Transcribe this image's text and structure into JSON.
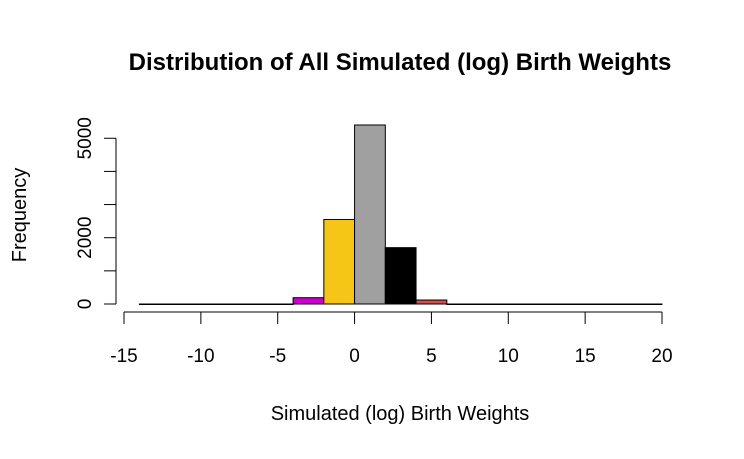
{
  "chart_data": {
    "type": "bar",
    "title": "Distribution of All Simulated (log) Birth Weights",
    "xlabel": "Simulated (log) Birth Weights",
    "ylabel": "Frequency",
    "xlim": [
      -15,
      20
    ],
    "ylim": [
      0,
      5200
    ],
    "x_ticks": [
      "-15",
      "-10",
      "-5",
      "0",
      "5",
      "10",
      "15",
      "20"
    ],
    "y_ticks": [
      "0",
      "2000",
      "5000"
    ],
    "bins": [
      {
        "start": -14,
        "end": -12,
        "value": 0,
        "color": "#ffffff"
      },
      {
        "start": -12,
        "end": -10,
        "value": 0,
        "color": "#ffffff"
      },
      {
        "start": -10,
        "end": -8,
        "value": 0,
        "color": "#ffffff"
      },
      {
        "start": -8,
        "end": -6,
        "value": 0,
        "color": "#ffffff"
      },
      {
        "start": -6,
        "end": -4,
        "value": 0,
        "color": "#ffffff"
      },
      {
        "start": -4,
        "end": -2,
        "value": 190,
        "color": "#cc00cc"
      },
      {
        "start": -2,
        "end": 0,
        "value": 2550,
        "color": "#f5c518"
      },
      {
        "start": 0,
        "end": 2,
        "value": 5400,
        "color": "#a0a0a0"
      },
      {
        "start": 2,
        "end": 4,
        "value": 1700,
        "color": "#000000"
      },
      {
        "start": 4,
        "end": 6,
        "value": 120,
        "color": "#d05050"
      },
      {
        "start": 6,
        "end": 8,
        "value": 0,
        "color": "#ffffff"
      },
      {
        "start": 8,
        "end": 10,
        "value": 0,
        "color": "#ffffff"
      },
      {
        "start": 10,
        "end": 12,
        "value": 0,
        "color": "#ffffff"
      },
      {
        "start": 12,
        "end": 14,
        "value": 0,
        "color": "#ffffff"
      },
      {
        "start": 14,
        "end": 16,
        "value": 0,
        "color": "#ffffff"
      },
      {
        "start": 16,
        "end": 18,
        "value": 0,
        "color": "#ffffff"
      },
      {
        "start": 18,
        "end": 20,
        "value": 0,
        "color": "#ffffff"
      }
    ],
    "grid": false,
    "legend": "none"
  }
}
